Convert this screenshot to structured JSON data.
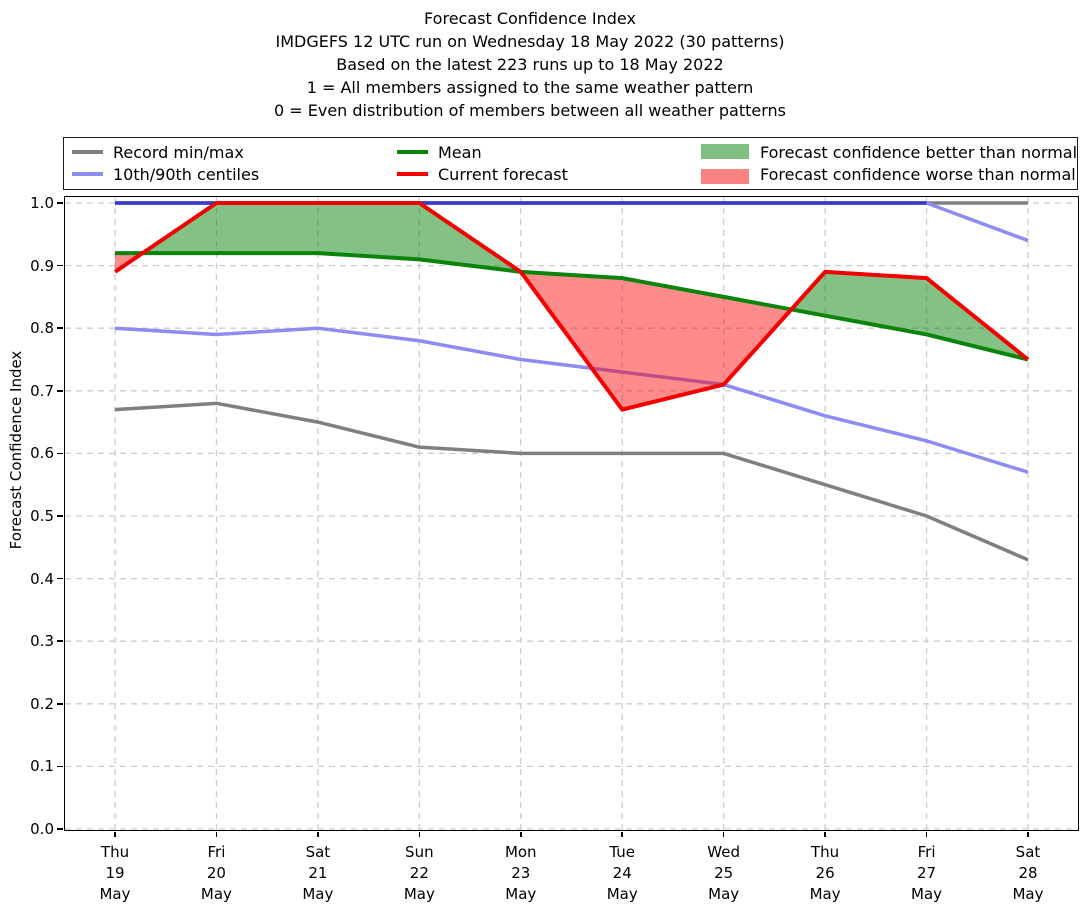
{
  "title": {
    "lines": [
      "Forecast Confidence Index",
      "IMDGEFS 12 UTC run on Wednesday 18 May 2022 (30 patterns)",
      "Based on the latest 223 runs up to 18 May 2022",
      "1 = All members assigned to the same weather pattern",
      "0 = Even distribution of members between all weather patterns"
    ]
  },
  "legend": {
    "entries": [
      {
        "label": "Record min/max",
        "type": "line",
        "color": "#7f7f7f"
      },
      {
        "label": "10th/90th centiles",
        "type": "line",
        "color": "#8c8cf2"
      },
      {
        "label": "Mean",
        "type": "line",
        "color": "#0a840a"
      },
      {
        "label": "Current forecast",
        "type": "line",
        "color": "#f40000"
      },
      {
        "label": "Forecast confidence better than normal",
        "type": "patch",
        "color": "#7fbf7f"
      },
      {
        "label": "Forecast confidence worse than normal",
        "type": "patch",
        "color": "#fb8383"
      }
    ]
  },
  "chart_data": {
    "type": "line",
    "title": "Forecast Confidence Index",
    "ylabel": "Forecast Confidence Index",
    "ylim": [
      0.0,
      1.0
    ],
    "grid": true,
    "legend_position": "top",
    "categories": [
      "Thu 19 May",
      "Fri 20 May",
      "Sat 21 May",
      "Sun 22 May",
      "Mon 23 May",
      "Tue 24 May",
      "Wed 25 May",
      "Thu 26 May",
      "Fri 27 May",
      "Sat 28 May"
    ],
    "x_ticklabels": [
      [
        "Thu",
        "19",
        "May"
      ],
      [
        "Fri",
        "20",
        "May"
      ],
      [
        "Sat",
        "21",
        "May"
      ],
      [
        "Sun",
        "22",
        "May"
      ],
      [
        "Mon",
        "23",
        "May"
      ],
      [
        "Tue",
        "24",
        "May"
      ],
      [
        "Wed",
        "25",
        "May"
      ],
      [
        "Thu",
        "26",
        "May"
      ],
      [
        "Fri",
        "27",
        "May"
      ],
      [
        "Sat",
        "28",
        "May"
      ]
    ],
    "y_ticklabels": [
      "1.0",
      "0.9",
      "0.8",
      "0.7",
      "0.6",
      "0.5",
      "0.4",
      "0.3",
      "0.2",
      "0.1",
      "0.0"
    ],
    "series": [
      {
        "name": "Record max",
        "color": "#7f7f7f",
        "width": 3.5,
        "values": [
          1.0,
          1.0,
          1.0,
          1.0,
          1.0,
          1.0,
          1.0,
          1.0,
          1.0,
          1.0
        ]
      },
      {
        "name": "Record min",
        "color": "#7f7f7f",
        "width": 3.5,
        "values": [
          0.67,
          0.68,
          0.65,
          0.61,
          0.6,
          0.6,
          0.6,
          0.55,
          0.5,
          0.43
        ]
      },
      {
        "name": "90th centile",
        "color": "#8c8cf2",
        "width": 3.5,
        "values": [
          1.0,
          1.0,
          1.0,
          1.0,
          1.0,
          1.0,
          1.0,
          1.0,
          1.0,
          0.94
        ]
      },
      {
        "name": "10th centile",
        "color": "#8c8cf2",
        "width": 3.5,
        "values": [
          0.8,
          0.79,
          0.8,
          0.78,
          0.75,
          0.73,
          0.71,
          0.66,
          0.62,
          0.57
        ]
      },
      {
        "name": "Mean",
        "color": "#0a840a",
        "width": 4,
        "values": [
          0.92,
          0.92,
          0.92,
          0.91,
          0.89,
          0.88,
          0.85,
          0.82,
          0.79,
          0.75
        ]
      },
      {
        "name": "Current forecast",
        "color": "#f40000",
        "width": 4,
        "values": [
          0.89,
          1.0,
          1.0,
          1.0,
          0.89,
          0.67,
          0.71,
          0.89,
          0.88,
          0.75
        ]
      }
    ],
    "overlap_top_line": {
      "color": "#3a3ac9",
      "from_index": 0,
      "to_index": 8,
      "value": 1.0
    },
    "fills": {
      "between": [
        "Mean",
        "Current forecast"
      ],
      "better_color": "rgba(10,132,10,0.5)",
      "worse_color": "rgba(255,0,0,0.45)",
      "better_label": "Forecast confidence better than normal",
      "worse_label": "Forecast confidence worse than normal"
    },
    "grid_color": "#cdcdcd"
  }
}
